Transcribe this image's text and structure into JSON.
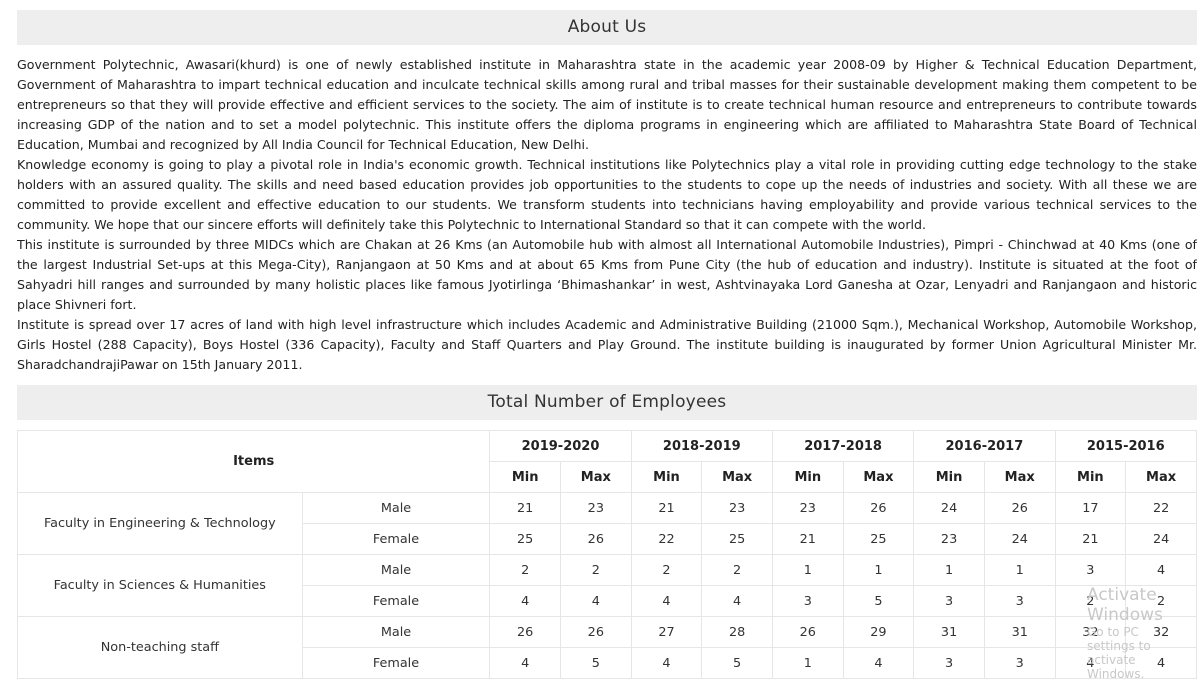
{
  "about": {
    "title": "About Us",
    "paragraphs": [
      "Government Polytechnic, Awasari(khurd) is one of newly established institute in Maharashtra state in the academic year 2008-09 by Higher & Technical Education Department, Government of Maharashtra to impart technical education and inculcate technical skills among rural and tribal masses for their sustainable development making them competent to be entrepreneurs so that they will provide effective and efficient services to the society. The aim of institute is to create technical human resource and entrepreneurs to contribute towards increasing GDP of the nation and to set a model polytechnic. This institute offers the diploma programs in engineering which are affiliated to Maharashtra State Board of Technical Education, Mumbai and recognized by All India Council for Technical Education, New Delhi.",
      "Knowledge economy is going to play a pivotal role in India's economic growth. Technical institutions like Polytechnics play a vital role in providing cutting edge technology to the stake holders with an assured quality. The skills and need based education provides job opportunities to the students to cope up the needs of industries and society. With all these we are committed to provide excellent and effective education to our students. We transform students into technicians having employability and provide various technical services to the community. We hope that our sincere efforts will definitely take this Polytechnic to International Standard so that it can compete with the world.",
      "This institute is surrounded by three MIDCs which are Chakan at 26 Kms (an Automobile hub with almost all International Automobile Industries), Pimpri - Chinchwad at 40 Kms (one of the largest Industrial Set-ups at this Mega-City), Ranjangaon at 50 Kms and at about 65 Kms from Pune City (the hub of education and industry). Institute is situated at the foot of Sahyadri hill ranges and surrounded by many holistic places like famous Jyotirlinga ‘Bhimashankar’ in west, Ashtvinayaka Lord Ganesha at Ozar, Lenyadri and Ranjangaon and historic place Shivneri fort.",
      "Institute is spread over 17 acres of land with high level infrastructure which includes Academic and Administrative Building (21000 Sqm.), Mechanical Workshop, Automobile Workshop, Girls Hostel (288 Capacity), Boys Hostel (336 Capacity), Faculty and Staff Quarters and Play Ground. The institute building is inaugurated by former Union Agricultural Minister Mr. SharadchandrajiPawar on 15th January 2011."
    ]
  },
  "employees": {
    "title": "Total Number of Employees",
    "items_header": "Items",
    "years": [
      "2019-2020",
      "2018-2019",
      "2017-2018",
      "2016-2017",
      "2015-2016"
    ],
    "min_label": "Min",
    "max_label": "Max",
    "groups": [
      {
        "name": "Faculty in Engineering & Technology",
        "rows": [
          {
            "gender": "Male",
            "values": [
              "21",
              "23",
              "21",
              "23",
              "23",
              "26",
              "24",
              "26",
              "17",
              "22"
            ]
          },
          {
            "gender": "Female",
            "values": [
              "25",
              "26",
              "22",
              "25",
              "21",
              "25",
              "23",
              "24",
              "21",
              "24"
            ]
          }
        ]
      },
      {
        "name": "Faculty in Sciences & Humanities",
        "rows": [
          {
            "gender": "Male",
            "values": [
              "2",
              "2",
              "2",
              "2",
              "1",
              "1",
              "1",
              "1",
              "3",
              "4"
            ]
          },
          {
            "gender": "Female",
            "values": [
              "4",
              "4",
              "4",
              "4",
              "3",
              "5",
              "3",
              "3",
              "2",
              "2"
            ]
          }
        ]
      },
      {
        "name": "Non-teaching staff",
        "rows": [
          {
            "gender": "Male",
            "values": [
              "26",
              "26",
              "27",
              "28",
              "26",
              "29",
              "31",
              "31",
              "32",
              "32"
            ]
          },
          {
            "gender": "Female",
            "values": [
              "4",
              "5",
              "4",
              "5",
              "1",
              "4",
              "3",
              "3",
              "4",
              "4"
            ]
          }
        ]
      }
    ]
  },
  "watermark": {
    "line1": "Activate Windows",
    "line2": "Go to PC settings to activate Windows."
  }
}
